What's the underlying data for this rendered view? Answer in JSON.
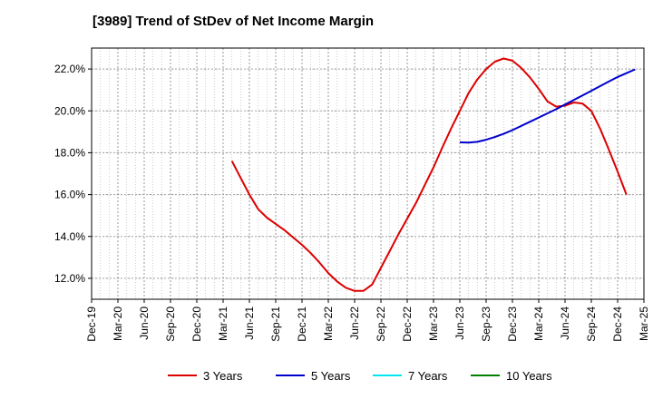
{
  "chart_data": {
    "type": "line",
    "title": "[3989]  Trend of StDev of Net Income Margin",
    "x_ticks": [
      "Dec-19",
      "Mar-20",
      "Jun-20",
      "Sep-20",
      "Dec-20",
      "Mar-21",
      "Jun-21",
      "Sep-21",
      "Dec-21",
      "Mar-22",
      "Jun-22",
      "Sep-22",
      "Dec-22",
      "Mar-23",
      "Jun-23",
      "Sep-23",
      "Dec-23",
      "Mar-24",
      "Jun-24",
      "Sep-24",
      "Dec-24",
      "Mar-25"
    ],
    "y_ticks": [
      "12.0%",
      "14.0%",
      "16.0%",
      "18.0%",
      "20.0%",
      "22.0%"
    ],
    "y_tick_values": [
      12,
      14,
      16,
      18,
      20,
      22
    ],
    "ylim": [
      11.0,
      23.0
    ],
    "xlim_months": [
      0,
      63
    ],
    "grid": true,
    "legend_position": "bottom",
    "series": [
      {
        "name": "3 Years",
        "color": "#dd0000",
        "points": [
          [
            "Apr-21",
            17.6
          ],
          [
            "May-21",
            16.8
          ],
          [
            "Jun-21",
            16.0
          ],
          [
            "Jul-21",
            15.3
          ],
          [
            "Aug-21",
            14.9
          ],
          [
            "Sep-21",
            14.6
          ],
          [
            "Oct-21",
            14.3
          ],
          [
            "Nov-21",
            13.95
          ],
          [
            "Dec-21",
            13.6
          ],
          [
            "Jan-22",
            13.2
          ],
          [
            "Feb-22",
            12.75
          ],
          [
            "Mar-22",
            12.25
          ],
          [
            "Apr-22",
            11.85
          ],
          [
            "May-22",
            11.55
          ],
          [
            "Jun-22",
            11.4
          ],
          [
            "Jul-22",
            11.4
          ],
          [
            "Aug-22",
            11.7
          ],
          [
            "Sep-22",
            12.5
          ],
          [
            "Oct-22",
            13.3
          ],
          [
            "Nov-22",
            14.1
          ],
          [
            "Dec-22",
            14.85
          ],
          [
            "Jan-23",
            15.6
          ],
          [
            "Feb-23",
            16.45
          ],
          [
            "Mar-23",
            17.3
          ],
          [
            "Apr-23",
            18.25
          ],
          [
            "May-23",
            19.15
          ],
          [
            "Jun-23",
            20.0
          ],
          [
            "Jul-23",
            20.85
          ],
          [
            "Aug-23",
            21.5
          ],
          [
            "Sep-23",
            22.0
          ],
          [
            "Oct-23",
            22.35
          ],
          [
            "Nov-23",
            22.5
          ],
          [
            "Dec-23",
            22.4
          ],
          [
            "Jan-24",
            22.05
          ],
          [
            "Feb-24",
            21.6
          ],
          [
            "Mar-24",
            21.05
          ],
          [
            "Apr-24",
            20.45
          ],
          [
            "May-24",
            20.2
          ],
          [
            "Jun-24",
            20.25
          ],
          [
            "Jul-24",
            20.4
          ],
          [
            "Aug-24",
            20.35
          ],
          [
            "Sep-24",
            20.0
          ],
          [
            "Oct-24",
            19.15
          ],
          [
            "Nov-24",
            18.15
          ],
          [
            "Dec-24",
            17.1
          ],
          [
            "Jan-25",
            16.0
          ]
        ]
      },
      {
        "name": "5 Years",
        "color": "#0000cc",
        "points": [
          [
            "Jun-23",
            18.5
          ],
          [
            "Jul-23",
            18.48
          ],
          [
            "Aug-23",
            18.52
          ],
          [
            "Sep-23",
            18.62
          ],
          [
            "Oct-23",
            18.75
          ],
          [
            "Nov-23",
            18.9
          ],
          [
            "Dec-23",
            19.08
          ],
          [
            "Jan-24",
            19.28
          ],
          [
            "Feb-24",
            19.48
          ],
          [
            "Mar-24",
            19.68
          ],
          [
            "Apr-24",
            19.88
          ],
          [
            "May-24",
            20.08
          ],
          [
            "Jun-24",
            20.3
          ],
          [
            "Jul-24",
            20.52
          ],
          [
            "Aug-24",
            20.74
          ],
          [
            "Sep-24",
            20.96
          ],
          [
            "Oct-24",
            21.18
          ],
          [
            "Nov-24",
            21.4
          ],
          [
            "Dec-24",
            21.62
          ],
          [
            "Jan-25",
            21.8
          ],
          [
            "Feb-25",
            21.98
          ]
        ]
      },
      {
        "name": "7 Years",
        "color": "#00e5ee",
        "points": []
      },
      {
        "name": "10 Years",
        "color": "#008000",
        "points": []
      }
    ]
  }
}
